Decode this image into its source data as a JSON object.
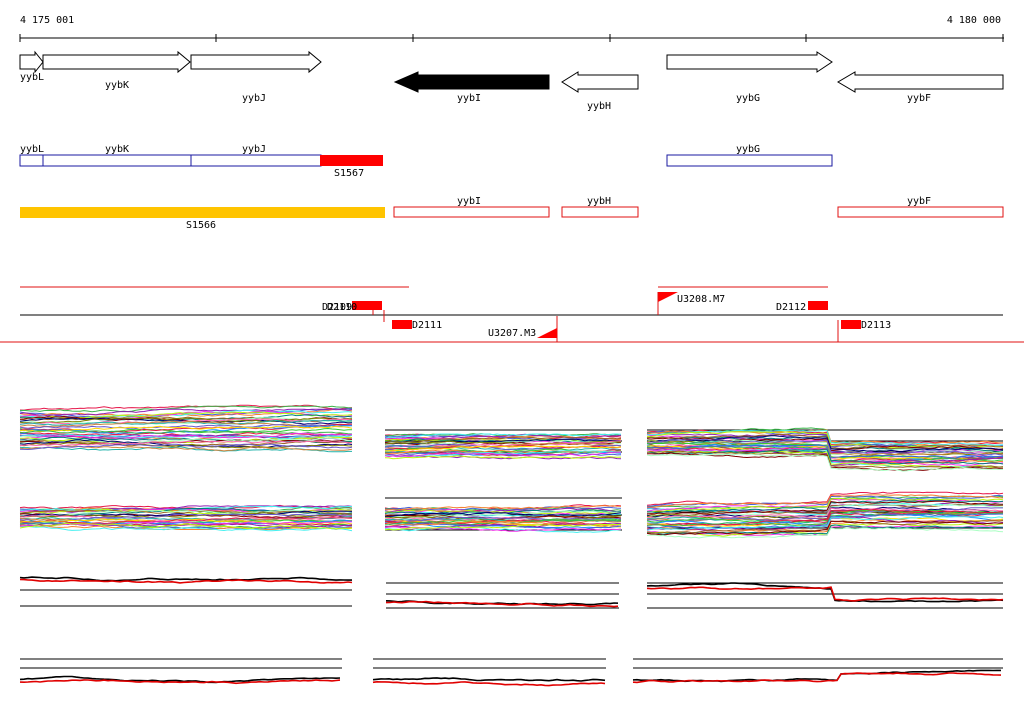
{
  "ruler": {
    "start_label": "4 175 001",
    "end_label": "4 180 000"
  },
  "genes": [
    {
      "name": "yybL",
      "strand": "+",
      "fill": "white"
    },
    {
      "name": "yybK",
      "strand": "+",
      "fill": "white"
    },
    {
      "name": "yybJ",
      "strand": "+",
      "fill": "white"
    },
    {
      "name": "yybI",
      "strand": "-",
      "fill": "black"
    },
    {
      "name": "yybH",
      "strand": "-",
      "fill": "white"
    },
    {
      "name": "yybG",
      "strand": "+",
      "fill": "white"
    },
    {
      "name": "yybF",
      "strand": "-",
      "fill": "white"
    }
  ],
  "transcripts_plus": [
    "yybL",
    "yybK",
    "yybJ",
    "S1567",
    "yybG"
  ],
  "transcripts_minus": [
    "S1566",
    "yybI",
    "yybH",
    "yybF"
  ],
  "features": [
    "D2109",
    "D2110",
    "D2111",
    "U3207.M3",
    "U3208.M7",
    "D2112",
    "D2113"
  ],
  "colors": {
    "gene_outline": "#000000",
    "plus_transcript": "#1a1aa0",
    "minus_transcript": "#e01010",
    "highlight": "#ff0000",
    "s1566": "#ffc400",
    "trace_black": "#000000",
    "trace_red": "#e00000"
  }
}
